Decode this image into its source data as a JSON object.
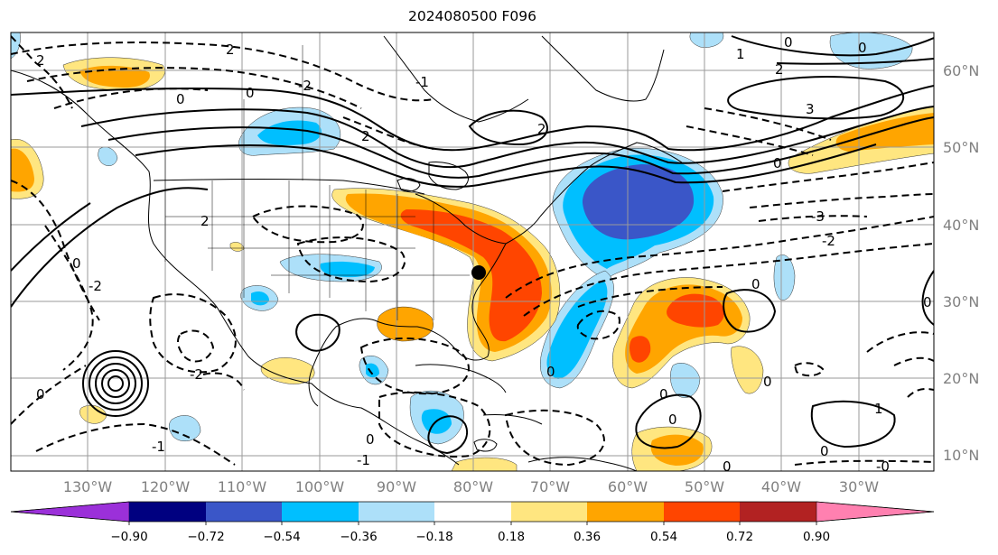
{
  "title": "2024080500 F096",
  "map": {
    "projection": "equirectangular",
    "lon_range": [
      -140,
      -22
    ],
    "lat_range": [
      6,
      63
    ],
    "meridian_labels": [
      "130°W",
      "120°W",
      "110°W",
      "100°W",
      "90°W",
      "80°W",
      "70°W",
      "60°W",
      "50°W",
      "40°W",
      "30°W"
    ],
    "parallel_labels": [
      "60°N",
      "50°N",
      "40°N",
      "30°N",
      "20°N",
      "10°N"
    ],
    "marker": {
      "name": "station-marker",
      "lon": -80.0,
      "lat": 34.0
    },
    "contour_labels": [
      "0",
      "-2",
      "-1",
      "2",
      "1",
      "3"
    ]
  },
  "colorbar": {
    "ticks": [
      "−0.90",
      "−0.72",
      "−0.54",
      "−0.36",
      "−0.18",
      "0.18",
      "0.36",
      "0.54",
      "0.72",
      "0.90"
    ],
    "under_color": "#9b30d9",
    "over_color": "#ff80b0",
    "colors": [
      "#000080",
      "#3a56c8",
      "#00bfff",
      "#ade0f9",
      "#ffffff",
      "#ffe680",
      "#ffa500",
      "#ff4500",
      "#b22222"
    ]
  }
}
